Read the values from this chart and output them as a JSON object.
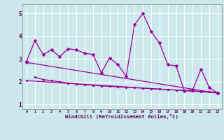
{
  "background_color": "#cce8ec",
  "line_color": "#990099",
  "grid_color": "#b0d8dc",
  "xlabel": "Windchill (Refroidissement éolien,°C)",
  "xlim": [
    -0.5,
    23.5
  ],
  "ylim": [
    0.8,
    5.4
  ],
  "yticks": [
    1,
    2,
    3,
    4,
    5
  ],
  "xticks": [
    0,
    1,
    2,
    3,
    4,
    5,
    6,
    7,
    8,
    9,
    10,
    11,
    12,
    13,
    14,
    15,
    16,
    17,
    18,
    19,
    20,
    21,
    22,
    23
  ],
  "series1_x": [
    0,
    1,
    2,
    3,
    4,
    5,
    6,
    7,
    8,
    9,
    10,
    11,
    12,
    13,
    14,
    15,
    16,
    17,
    18,
    19,
    20,
    21,
    22,
    23
  ],
  "series1_y": [
    2.9,
    3.8,
    3.2,
    3.4,
    3.1,
    3.45,
    3.4,
    3.25,
    3.2,
    2.4,
    3.05,
    2.75,
    2.25,
    4.5,
    5.0,
    4.2,
    3.7,
    2.75,
    2.7,
    1.6,
    1.65,
    2.55,
    1.75,
    1.5
  ],
  "series2_x": [
    0,
    23
  ],
  "series2_y": [
    2.85,
    1.5
  ],
  "series3_x": [
    1,
    2,
    3,
    4,
    5,
    6,
    7,
    8,
    9,
    10,
    11,
    12,
    13,
    14,
    15,
    16,
    17,
    18,
    19,
    20,
    21,
    22,
    23
  ],
  "series3_y": [
    2.2,
    2.1,
    2.05,
    2.0,
    1.95,
    1.9,
    1.88,
    1.85,
    1.82,
    1.8,
    1.78,
    1.76,
    1.74,
    1.72,
    1.7,
    1.68,
    1.66,
    1.64,
    1.62,
    1.6,
    1.58,
    1.56,
    1.54
  ],
  "series4_x": [
    0,
    23
  ],
  "series4_y": [
    2.05,
    1.52
  ]
}
